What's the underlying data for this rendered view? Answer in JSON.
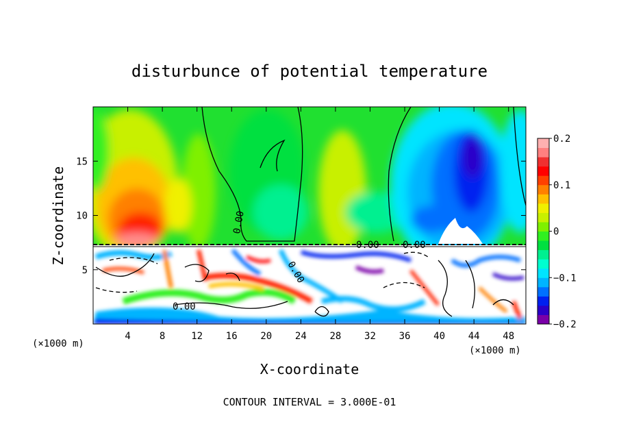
{
  "chart_data": {
    "type": "heatmap",
    "title": "disturbunce of potential temperature",
    "xlabel": "X-coordinate",
    "ylabel": "Z-coordinate",
    "x_unit": "(×1000 m)",
    "x_unit_right": "(×1000 m)",
    "xlim": [
      0,
      50
    ],
    "ylim": [
      0,
      20
    ],
    "x_ticks": [
      4,
      8,
      12,
      16,
      20,
      24,
      28,
      32,
      36,
      40,
      44,
      48
    ],
    "y_ticks": [
      5,
      10,
      15
    ],
    "colorbar": {
      "min": -0.2,
      "max": 0.2,
      "tick_values": [
        0.2,
        0.1,
        0,
        -0.1,
        -0.2
      ],
      "tick_labels": [
        "0.2",
        "0.1",
        "0",
        "−0.1",
        "−0.2"
      ],
      "colors": [
        "#7a00a8",
        "#2a00c8",
        "#0020f0",
        "#0070ff",
        "#00b4ff",
        "#00e4ff",
        "#00ffd0",
        "#00f090",
        "#00e040",
        "#30f020",
        "#7ff000",
        "#c8f000",
        "#f0f000",
        "#ffc000",
        "#ff8000",
        "#ff4000",
        "#ff0000",
        "#f03030",
        "#ff8080",
        "#ffb0b0"
      ]
    },
    "contour_labels": [
      "0.00",
      "0.00",
      "0.00",
      "0.00",
      "0.00"
    ],
    "footer": "CONTOUR INTERVAL = 3.000E-01"
  }
}
